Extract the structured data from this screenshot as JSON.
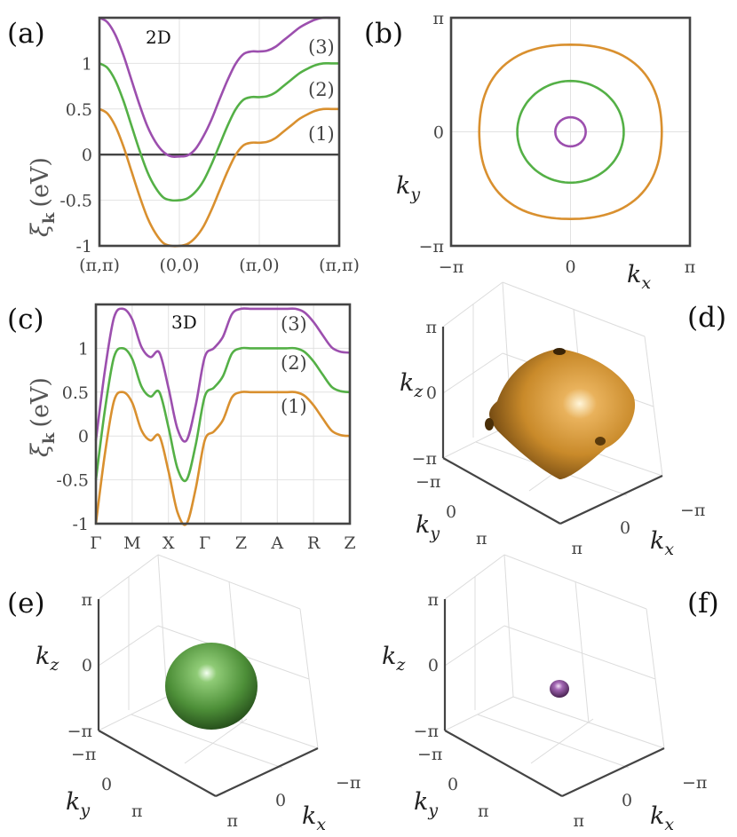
{
  "colors": {
    "band1": "#D9902F",
    "band2": "#54B046",
    "band3": "#9C4FAE",
    "axis": "#444444",
    "grid": "#E2E2E2"
  },
  "chart_data": [
    {
      "panel": "(a)",
      "type": "line",
      "annotation": "2D",
      "ylabel": "ξk (eV)",
      "ylim": [
        -1,
        1.5
      ],
      "yticks": [
        "-1",
        "-0.5",
        "0",
        "0.5",
        "1"
      ],
      "x_tick_labels": [
        "(π,π)",
        "(0,0)",
        "(π,0)",
        "(π,π)"
      ],
      "x": [
        0,
        0.1,
        0.2,
        0.3,
        0.4,
        0.5,
        0.6,
        0.7,
        0.8,
        0.9,
        1,
        1.1,
        1.2,
        1.3,
        1.4,
        1.5,
        1.6,
        1.7,
        1.8,
        1.9,
        2,
        2.1,
        2.2,
        2.3,
        2.4,
        2.5,
        2.6,
        2.7,
        2.8,
        2.9,
        3
      ],
      "series": [
        {
          "name": "(1)",
          "values": [
            0.5,
            0.45,
            0.31,
            0.09,
            -0.18,
            -0.45,
            -0.69,
            -0.86,
            -0.97,
            -1.0,
            -1.0,
            -0.98,
            -0.91,
            -0.79,
            -0.61,
            -0.4,
            -0.19,
            -0.01,
            0.1,
            0.13,
            0.13,
            0.14,
            0.18,
            0.25,
            0.32,
            0.39,
            0.44,
            0.48,
            0.5,
            0.5,
            0.5
          ]
        },
        {
          "name": "(2)",
          "values": [
            1.0,
            0.95,
            0.81,
            0.59,
            0.32,
            0.05,
            -0.19,
            -0.36,
            -0.47,
            -0.5,
            -0.5,
            -0.48,
            -0.41,
            -0.29,
            -0.11,
            0.1,
            0.31,
            0.49,
            0.6,
            0.63,
            0.63,
            0.64,
            0.68,
            0.75,
            0.82,
            0.89,
            0.94,
            0.98,
            1.0,
            1.0,
            1.0
          ]
        },
        {
          "name": "(3)",
          "values": [
            1.5,
            1.45,
            1.31,
            1.09,
            0.82,
            0.55,
            0.31,
            0.14,
            0.03,
            -0.02,
            -0.02,
            -0.01,
            0.06,
            0.2,
            0.38,
            0.6,
            0.81,
            0.99,
            1.1,
            1.13,
            1.13,
            1.14,
            1.18,
            1.25,
            1.32,
            1.39,
            1.44,
            1.48,
            1.5,
            1.5,
            1.5
          ]
        }
      ]
    },
    {
      "panel": "(b)",
      "type": "line",
      "xlabel": "kx",
      "ylabel": "ky",
      "xlim": [
        -3.1416,
        3.1416
      ],
      "ylim": [
        -3.1416,
        3.1416
      ],
      "xticks": [
        "−π",
        "0",
        "π"
      ],
      "yticks": [
        "−π",
        "0",
        "π"
      ],
      "series": [
        {
          "name": "(1)",
          "shape": "rounded-square contour",
          "radius_axis": 2.4,
          "radius_diagonal": 2.53
        },
        {
          "name": "(2)",
          "shape": "circle",
          "radius": 1.4
        },
        {
          "name": "(3)",
          "shape": "circle",
          "radius": 0.4
        }
      ]
    },
    {
      "panel": "(c)",
      "type": "line",
      "annotation": "3D",
      "ylabel": "ξk (eV)",
      "ylim": [
        -1,
        1.5
      ],
      "yticks": [
        "-1",
        "-0.5",
        "0",
        "0.5",
        "1"
      ],
      "x_tick_labels": [
        "Γ",
        "M",
        "X",
        "Γ",
        "Z",
        "A",
        "R",
        "Z"
      ],
      "x": [
        0,
        0.25,
        0.5,
        0.75,
        1,
        1.25,
        1.5,
        1.75,
        2,
        2.25,
        2.5,
        2.75,
        3,
        3.25,
        3.5,
        3.75,
        4,
        4.25,
        4.5,
        4.75,
        5,
        5.25,
        5.5,
        5.75,
        6,
        6.25,
        6.5,
        6.75,
        7
      ],
      "series": [
        {
          "name": "(1)",
          "values": [
            -1.0,
            -0.2,
            0.4,
            0.5,
            0.38,
            0.07,
            -0.05,
            0.0,
            -0.4,
            -0.87,
            -1.0,
            -0.6,
            -0.05,
            0.05,
            0.18,
            0.44,
            0.5,
            0.5,
            0.5,
            0.5,
            0.5,
            0.5,
            0.5,
            0.46,
            0.35,
            0.2,
            0.06,
            0.01,
            0.0
          ]
        },
        {
          "name": "(2)",
          "values": [
            -0.5,
            0.3,
            0.9,
            1.0,
            0.88,
            0.57,
            0.45,
            0.5,
            0.1,
            -0.37,
            -0.5,
            -0.1,
            0.45,
            0.55,
            0.68,
            0.94,
            1.0,
            1.0,
            1.0,
            1.0,
            1.0,
            1.0,
            1.0,
            0.96,
            0.85,
            0.7,
            0.56,
            0.51,
            0.5
          ]
        },
        {
          "name": "(3)",
          "values": [
            -0.05,
            0.75,
            1.35,
            1.45,
            1.33,
            1.02,
            0.9,
            0.95,
            0.55,
            0.08,
            -0.05,
            0.35,
            0.9,
            1.0,
            1.13,
            1.39,
            1.45,
            1.45,
            1.45,
            1.45,
            1.45,
            1.45,
            1.45,
            1.41,
            1.3,
            1.15,
            1.01,
            0.96,
            0.95
          ]
        }
      ]
    },
    {
      "panel": "(d)",
      "type": "other",
      "description_tag": "3D Fermi surface (band 1)",
      "xlabel": "kx",
      "ylabel": "ky",
      "zlabel": "kz",
      "kx_ticks": [
        "−π",
        "0",
        "π"
      ],
      "ky_ticks": [
        "−π",
        "0",
        "π"
      ],
      "kz_ticks": [
        "−π",
        "0",
        "π"
      ]
    },
    {
      "panel": "(e)",
      "type": "other",
      "description_tag": "3D Fermi surface (band 2)",
      "xlabel": "kx",
      "ylabel": "ky",
      "zlabel": "kz",
      "kx_ticks": [
        "−π",
        "0",
        "π"
      ],
      "ky_ticks": [
        "−π",
        "0",
        "π"
      ],
      "kz_ticks": [
        "−π",
        "0",
        "π"
      ]
    },
    {
      "panel": "(f)",
      "type": "other",
      "description_tag": "3D Fermi surface (band 3)",
      "xlabel": "kx",
      "ylabel": "ky",
      "zlabel": "kz",
      "kx_ticks": [
        "−π",
        "0",
        "π"
      ],
      "ky_ticks": [
        "−π",
        "0",
        "π"
      ],
      "kz_ticks": [
        "−π",
        "0",
        "π"
      ]
    }
  ],
  "labels": {
    "a": "(a)",
    "b": "(b)",
    "c": "(c)",
    "d": "(d)",
    "e": "(e)",
    "f": "(f)",
    "tag2d": "2D",
    "tag3d": "3D",
    "band1": "(1)",
    "band2": "(2)",
    "band3": "(3)",
    "xi": "ξ",
    "xi_sub": "k",
    "ev": "(eV)",
    "kx": "k",
    "kx_sub": "x",
    "ky": "k",
    "ky_sub": "y",
    "kz": "k",
    "kz_sub": "z",
    "pi": "π",
    "mpi": "−π",
    "zero": "0"
  }
}
